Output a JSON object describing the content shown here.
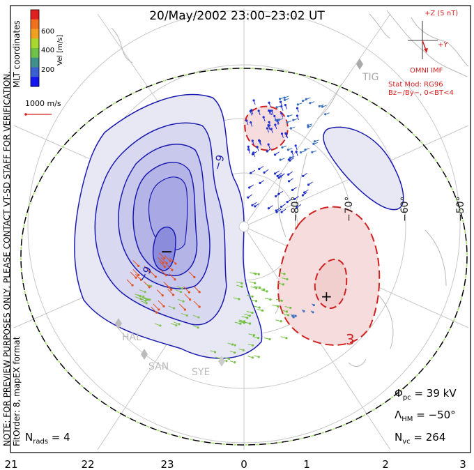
{
  "header": {
    "title": "20/May/2002 23:00–23:02 UT"
  },
  "side_note": {
    "line1": "NOTE: FOR PREVIEW PURPOSES ONLY, PLEASE CONTACT VT-SD STAFF FOR VERIFICATION.",
    "line2": "FitOrder: 8, mapEX format",
    "coords": "MLT coordinates"
  },
  "colorbar": {
    "label": "Vel [m/s]",
    "ticks": [
      "600",
      "400",
      "200"
    ],
    "colors": [
      "#1515f0",
      "#3a5fd0",
      "#3f8f8a",
      "#6fc048",
      "#a8d830",
      "#f0a020",
      "#f07020",
      "#e02020"
    ]
  },
  "scale_vector": {
    "label": "1000 m/s"
  },
  "imf": {
    "z_label": "+Z (5 nT)",
    "y_label": "+Y",
    "source": "OMNI IMF",
    "model": "Stat Mod: RG96",
    "condition": "Bz−/By−, 0<BT<4"
  },
  "stations": [
    {
      "name": "TIG",
      "label": "TIG"
    },
    {
      "name": "HAL",
      "label": "HAL"
    },
    {
      "name": "SAN",
      "label": "SAN"
    },
    {
      "name": "SYE",
      "label": "SYE"
    }
  ],
  "latitude_labels": [
    "−80°",
    "−70°",
    "−60°",
    "−50°"
  ],
  "contours": {
    "neg_label": "−9",
    "neg_label2": "−9",
    "pos_label": "3",
    "min_marker": "−",
    "max_marker": "+"
  },
  "stats": {
    "phi_symbol": "Φ",
    "phi_sub": "pc",
    "phi_value": " = 39 kV",
    "lambda_symbol": "Λ",
    "lambda_sub": "HM",
    "lambda_value": " = −50°",
    "nvc_symbol": "N",
    "nvc_sub": "vc",
    "nvc_value": " = 264",
    "nrads_symbol": "N",
    "nrads_sub": "rads",
    "nrads_value": " = 4"
  },
  "mlt_axis": [
    "21",
    "22",
    "23",
    "0",
    "1",
    "2",
    "3"
  ]
}
